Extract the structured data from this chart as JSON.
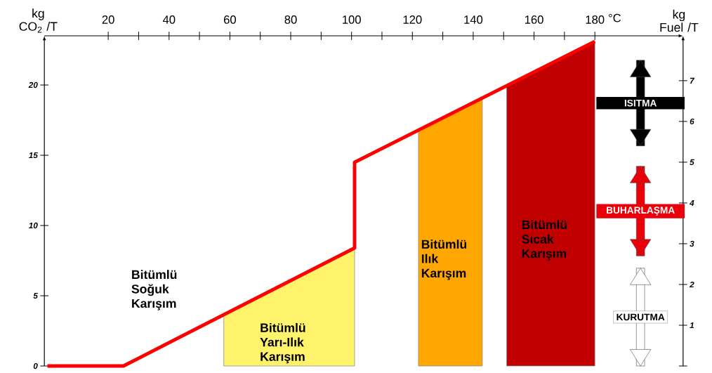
{
  "chart_data": {
    "type": "line",
    "xlabel": "°C",
    "ylabel": "kg CO$_{2}$ /T",
    "y2label": "kg Fuel /T",
    "xlim": [
      -1,
      209
    ],
    "xticks": [
      20,
      {
        "value": 30,
        "label": null
      },
      40,
      {
        "value": 50,
        "label": null
      },
      60,
      {
        "value": 70,
        "label": null
      },
      80,
      {
        "value": 90,
        "label": null
      },
      100,
      {
        "value": 110,
        "label": null
      },
      120,
      {
        "value": 130,
        "label": null
      },
      140,
      {
        "value": 150,
        "label": null
      },
      160,
      {
        "value": 170,
        "label": null
      },
      180
    ],
    "ylim": [
      0,
      23.5
    ],
    "yticks": [
      0,
      5,
      10,
      15,
      20
    ],
    "y2lim": [
      0,
      8.1
    ],
    "y2ticks": [
      {
        "value": 0,
        "label": null
      },
      1,
      2,
      3,
      4,
      5,
      6,
      7
    ],
    "series": [
      {
        "type": "area",
        "name": "Bitümlü Yarı-Ilık Karışım",
        "color": "#fff36b",
        "x": [
          58,
          101
        ],
        "values": [
          3.6,
          8.3
        ]
      },
      {
        "type": "area",
        "name": "Bitümlü Ilık Karışım",
        "color": "#ffa600",
        "x": [
          122,
          143
        ],
        "values": [
          16.8,
          19.1
        ]
      },
      {
        "type": "area",
        "name": "Bitümlü Sıcak Karışım",
        "color": "#c00000",
        "x": [
          151,
          180
        ],
        "values": [
          19.9,
          23.1
        ]
      },
      {
        "color": "#ff0000",
        "x": [
          0,
          25,
          101,
          101,
          180
        ],
        "values": [
          0,
          0,
          8.4,
          14.5,
          23.1
        ]
      },
      {
        "type": "bar",
        "axis": "y2",
        "name": "ISITMA",
        "color": "#000000",
        "x": [
          195
        ],
        "base": [
          5.4
        ],
        "values": [
          2.1
        ]
      },
      {
        "type": "bar",
        "axis": "y2",
        "name": "BUHARLAŞMA",
        "color": "#e8000b",
        "x": [
          195
        ],
        "base": [
          2.7
        ],
        "values": [
          2.2
        ]
      },
      {
        "type": "bar",
        "axis": "y2",
        "name": "KURUTMA",
        "color": "#ffffff",
        "x": [
          195
        ],
        "base": [
          0
        ],
        "values": [
          2.4
        ]
      }
    ],
    "annotations": [
      "Bitümlü Soğuk Karışım"
    ],
    "grid": false
  }
}
